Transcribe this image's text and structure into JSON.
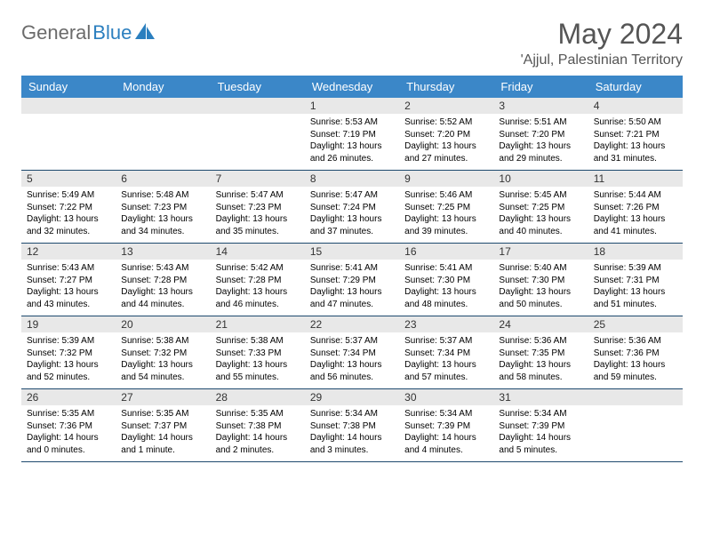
{
  "brand": {
    "text1": "General",
    "text2": "Blue"
  },
  "title": "May 2024",
  "location": "'Ajjul, Palestinian Territory",
  "dayNames": [
    "Sunday",
    "Monday",
    "Tuesday",
    "Wednesday",
    "Thursday",
    "Friday",
    "Saturday"
  ],
  "layout": {
    "startOffset": 3,
    "daysInMonth": 31,
    "weeks": 5
  },
  "style": {
    "header_bg": "#3b87c8",
    "header_text": "#ffffff",
    "date_bar_bg": "#e8e8e8",
    "border_color": "#1e4a6e",
    "title_color": "#555555",
    "cell_fontsize": 10
  },
  "days": {
    "1": {
      "sunrise": "5:53 AM",
      "sunset": "7:19 PM",
      "dl_h": 13,
      "dl_m": 26
    },
    "2": {
      "sunrise": "5:52 AM",
      "sunset": "7:20 PM",
      "dl_h": 13,
      "dl_m": 27
    },
    "3": {
      "sunrise": "5:51 AM",
      "sunset": "7:20 PM",
      "dl_h": 13,
      "dl_m": 29
    },
    "4": {
      "sunrise": "5:50 AM",
      "sunset": "7:21 PM",
      "dl_h": 13,
      "dl_m": 31
    },
    "5": {
      "sunrise": "5:49 AM",
      "sunset": "7:22 PM",
      "dl_h": 13,
      "dl_m": 32
    },
    "6": {
      "sunrise": "5:48 AM",
      "sunset": "7:23 PM",
      "dl_h": 13,
      "dl_m": 34
    },
    "7": {
      "sunrise": "5:47 AM",
      "sunset": "7:23 PM",
      "dl_h": 13,
      "dl_m": 35
    },
    "8": {
      "sunrise": "5:47 AM",
      "sunset": "7:24 PM",
      "dl_h": 13,
      "dl_m": 37
    },
    "9": {
      "sunrise": "5:46 AM",
      "sunset": "7:25 PM",
      "dl_h": 13,
      "dl_m": 39
    },
    "10": {
      "sunrise": "5:45 AM",
      "sunset": "7:25 PM",
      "dl_h": 13,
      "dl_m": 40
    },
    "11": {
      "sunrise": "5:44 AM",
      "sunset": "7:26 PM",
      "dl_h": 13,
      "dl_m": 41
    },
    "12": {
      "sunrise": "5:43 AM",
      "sunset": "7:27 PM",
      "dl_h": 13,
      "dl_m": 43
    },
    "13": {
      "sunrise": "5:43 AM",
      "sunset": "7:28 PM",
      "dl_h": 13,
      "dl_m": 44
    },
    "14": {
      "sunrise": "5:42 AM",
      "sunset": "7:28 PM",
      "dl_h": 13,
      "dl_m": 46
    },
    "15": {
      "sunrise": "5:41 AM",
      "sunset": "7:29 PM",
      "dl_h": 13,
      "dl_m": 47
    },
    "16": {
      "sunrise": "5:41 AM",
      "sunset": "7:30 PM",
      "dl_h": 13,
      "dl_m": 48
    },
    "17": {
      "sunrise": "5:40 AM",
      "sunset": "7:30 PM",
      "dl_h": 13,
      "dl_m": 50
    },
    "18": {
      "sunrise": "5:39 AM",
      "sunset": "7:31 PM",
      "dl_h": 13,
      "dl_m": 51
    },
    "19": {
      "sunrise": "5:39 AM",
      "sunset": "7:32 PM",
      "dl_h": 13,
      "dl_m": 52
    },
    "20": {
      "sunrise": "5:38 AM",
      "sunset": "7:32 PM",
      "dl_h": 13,
      "dl_m": 54
    },
    "21": {
      "sunrise": "5:38 AM",
      "sunset": "7:33 PM",
      "dl_h": 13,
      "dl_m": 55
    },
    "22": {
      "sunrise": "5:37 AM",
      "sunset": "7:34 PM",
      "dl_h": 13,
      "dl_m": 56
    },
    "23": {
      "sunrise": "5:37 AM",
      "sunset": "7:34 PM",
      "dl_h": 13,
      "dl_m": 57
    },
    "24": {
      "sunrise": "5:36 AM",
      "sunset": "7:35 PM",
      "dl_h": 13,
      "dl_m": 58
    },
    "25": {
      "sunrise": "5:36 AM",
      "sunset": "7:36 PM",
      "dl_h": 13,
      "dl_m": 59
    },
    "26": {
      "sunrise": "5:35 AM",
      "sunset": "7:36 PM",
      "dl_h": 14,
      "dl_m": 0
    },
    "27": {
      "sunrise": "5:35 AM",
      "sunset": "7:37 PM",
      "dl_h": 14,
      "dl_m": 1
    },
    "28": {
      "sunrise": "5:35 AM",
      "sunset": "7:38 PM",
      "dl_h": 14,
      "dl_m": 2
    },
    "29": {
      "sunrise": "5:34 AM",
      "sunset": "7:38 PM",
      "dl_h": 14,
      "dl_m": 3
    },
    "30": {
      "sunrise": "5:34 AM",
      "sunset": "7:39 PM",
      "dl_h": 14,
      "dl_m": 4
    },
    "31": {
      "sunrise": "5:34 AM",
      "sunset": "7:39 PM",
      "dl_h": 14,
      "dl_m": 5
    }
  },
  "labels": {
    "sunrise": "Sunrise:",
    "sunset": "Sunset:",
    "daylight": "Daylight:",
    "hours": "hours",
    "and": "and",
    "minute": "minute",
    "minutes": "minutes"
  }
}
